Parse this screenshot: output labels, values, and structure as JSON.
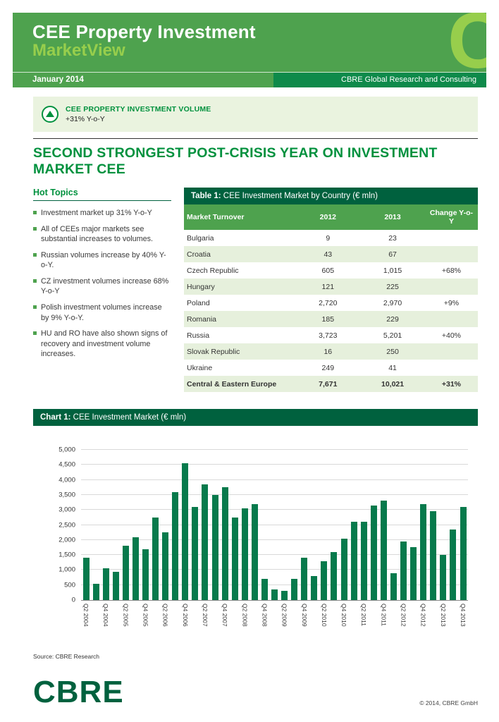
{
  "header": {
    "title_line1": "CEE Property Investment",
    "title_line2": "MarketView",
    "date": "January 2014",
    "org": "CBRE Global Research and Consulting",
    "logo_letter": "C"
  },
  "indicator": {
    "label": "CEE PROPERTY INVESTMENT VOLUME",
    "value": "+31% Y-o-Y"
  },
  "headline": "SECOND STRONGEST POST-CRISIS YEAR ON INVESTMENT MARKET CEE",
  "hot_topics": {
    "title": "Hot Topics",
    "items": [
      "Investment market up 31% Y-o-Y",
      "All of CEEs major markets see substantial increases to volumes.",
      "Russian volumes increase by 40% Y-o-Y.",
      "CZ investment volumes increase 68% Y-o-Y",
      "Polish investment volumes increase by 9% Y-o-Y.",
      "HU and RO have also shown signs of recovery and investment volume increases."
    ]
  },
  "table": {
    "title_prefix": "Table 1:",
    "title_rest": " CEE Investment Market by Country (€ mln)",
    "columns": [
      "Market Turnover",
      "2012",
      "2013",
      "Change Y-o-Y"
    ],
    "rows": [
      {
        "country": "Bulgaria",
        "y2012": "9",
        "y2013": "23",
        "change": ""
      },
      {
        "country": "Croatia",
        "y2012": "43",
        "y2013": "67",
        "change": ""
      },
      {
        "country": "Czech Republic",
        "y2012": "605",
        "y2013": "1,015",
        "change": "+68%"
      },
      {
        "country": "Hungary",
        "y2012": "121",
        "y2013": "225",
        "change": ""
      },
      {
        "country": "Poland",
        "y2012": "2,720",
        "y2013": "2,970",
        "change": "+9%"
      },
      {
        "country": "Romania",
        "y2012": "185",
        "y2013": "229",
        "change": ""
      },
      {
        "country": "Russia",
        "y2012": "3,723",
        "y2013": "5,201",
        "change": "+40%"
      },
      {
        "country": "Slovak Republic",
        "y2012": "16",
        "y2013": "250",
        "change": ""
      },
      {
        "country": "Ukraine",
        "y2012": "249",
        "y2013": "41",
        "change": ""
      }
    ],
    "total_row": {
      "country": "Central & Eastern Europe",
      "y2012": "7,671",
      "y2013": "10,021",
      "change": "+31%"
    }
  },
  "chart": {
    "title_prefix": "Chart 1:",
    "title_rest": " CEE Investment Market (€ mln)"
  },
  "chart_data": {
    "type": "bar",
    "title": "CEE Investment Market (€ mln)",
    "xlabel": "",
    "ylabel": "",
    "ylim": [
      0,
      5000
    ],
    "ytick_step": 500,
    "grid": true,
    "legend": "none",
    "bar_color": "#077A4C",
    "x_labels_shown_every": 2,
    "x": [
      "Q2 2004",
      "Q3 2004",
      "Q4 2004",
      "Q1 2005",
      "Q2 2005",
      "Q3 2005",
      "Q4 2005",
      "Q1 2006",
      "Q2 2006",
      "Q3 2006",
      "Q4 2006",
      "Q1 2007",
      "Q2 2007",
      "Q3 2007",
      "Q4 2007",
      "Q1 2008",
      "Q2 2008",
      "Q3 2008",
      "Q4 2008",
      "Q1 2009",
      "Q2 2009",
      "Q3 2009",
      "Q4 2009",
      "Q1 2010",
      "Q2 2010",
      "Q3 2010",
      "Q4 2010",
      "Q1 2011",
      "Q2 2011",
      "Q3 2011",
      "Q4 2011",
      "Q1 2012",
      "Q2 2012",
      "Q3 2012",
      "Q4 2012",
      "Q1 2013",
      "Q2 2013",
      "Q3 2013",
      "Q4 2013"
    ],
    "values": [
      1400,
      550,
      1050,
      950,
      1800,
      2100,
      1700,
      2750,
      2250,
      3600,
      4550,
      3100,
      3850,
      3500,
      3750,
      2750,
      3050,
      3200,
      700,
      350,
      300,
      700,
      1400,
      800,
      1300,
      1600,
      2050,
      2600,
      2600,
      3150,
      3300,
      900,
      1950,
      1750,
      3200,
      2950,
      1500,
      2350,
      3100
    ]
  },
  "source": "Source:  CBRE Research",
  "footer": {
    "logo": "CBRE",
    "copyright": "© 2014, CBRE GmbH"
  },
  "colors": {
    "banner_green": "#4EA24E",
    "accent_lime": "#97CE4C",
    "dark_green": "#00613E",
    "strip_green": "#0E8A4A",
    "headline_green": "#00913E",
    "band_bg": "#EAF3DF",
    "row_tint": "#E6F0DC",
    "bar_green": "#077A4C"
  }
}
